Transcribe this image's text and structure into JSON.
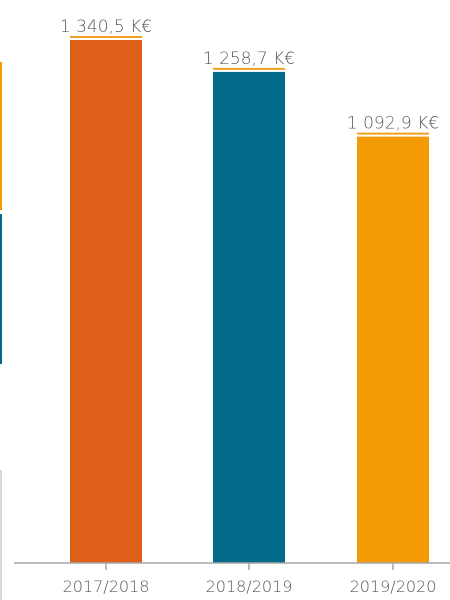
{
  "chart_data": {
    "type": "bar",
    "categories": [
      "2017/2018",
      "2018/2019",
      "2019/2020"
    ],
    "values": [
      1340.5,
      1258.7,
      1092.9
    ],
    "value_labels": [
      "1 340,5 K€",
      "1 258,7 K€",
      "1 092,9 K€"
    ],
    "unit": "K€",
    "bar_colors": [
      "#de5f17",
      "#036a8b",
      "#f39a05"
    ],
    "label_underline_color": "#f0a020",
    "axis_color": "#a6a6a6",
    "label_color": "#5a5a5a",
    "ylim": [
      0,
      1400
    ],
    "grid": false,
    "legend": "none",
    "title": "",
    "xlabel": "",
    "ylabel": ""
  },
  "edge_strips": [
    {
      "color": "#f39a05"
    },
    {
      "color": "#036a8b"
    },
    {
      "color": "#d9d9d9"
    }
  ]
}
